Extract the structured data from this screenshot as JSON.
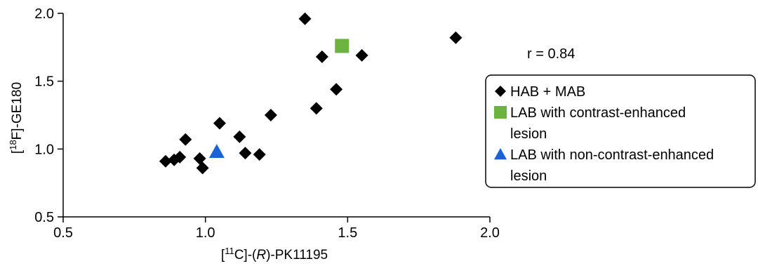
{
  "chart_data": {
    "type": "scatter",
    "xlabel": {
      "prefix": "[",
      "sup": "11",
      "mid": "C]-(",
      "italic": "R",
      "suffix": ")-PK11195"
    },
    "ylabel": {
      "prefix": "[",
      "sup": "18",
      "suffix": "F]-GE180"
    },
    "xlim": [
      0.5,
      2.0
    ],
    "ylim": [
      0.5,
      2.0
    ],
    "xticks": [
      0.5,
      1.0,
      1.5,
      2.0
    ],
    "xtick_labels": [
      "0.5",
      "1.0",
      "1.5",
      "2.0"
    ],
    "yticks": [
      0.5,
      1.0,
      1.5,
      2.0
    ],
    "ytick_labels": [
      "0.5",
      "1.0",
      "1.5",
      "2.0"
    ],
    "grid": false,
    "annotation": "r = 0.84",
    "legend_position": "right",
    "series": [
      {
        "name": "HAB + MAB",
        "marker": "diamond",
        "color": "#000000",
        "points": [
          {
            "x": 0.86,
            "y": 0.91
          },
          {
            "x": 0.89,
            "y": 0.92
          },
          {
            "x": 0.91,
            "y": 0.94
          },
          {
            "x": 0.93,
            "y": 1.07
          },
          {
            "x": 0.98,
            "y": 0.93
          },
          {
            "x": 0.99,
            "y": 0.86
          },
          {
            "x": 1.05,
            "y": 1.19
          },
          {
            "x": 1.12,
            "y": 1.09
          },
          {
            "x": 1.14,
            "y": 0.97
          },
          {
            "x": 1.19,
            "y": 0.96
          },
          {
            "x": 1.23,
            "y": 1.25
          },
          {
            "x": 1.35,
            "y": 1.96
          },
          {
            "x": 1.39,
            "y": 1.3
          },
          {
            "x": 1.41,
            "y": 1.68
          },
          {
            "x": 1.46,
            "y": 1.44
          },
          {
            "x": 1.55,
            "y": 1.69
          },
          {
            "x": 1.88,
            "y": 1.82
          }
        ]
      },
      {
        "name": "LAB with contrast-enhanced lesion",
        "legend_lines": [
          "LAB with contrast-enhanced",
          "lesion"
        ],
        "marker": "square",
        "color": "#6cb33f",
        "points": [
          {
            "x": 1.48,
            "y": 1.76
          }
        ]
      },
      {
        "name": "LAB with non-contrast-enhanced lesion",
        "legend_lines": [
          "LAB with non-contrast-enhanced",
          "lesion"
        ],
        "marker": "triangle",
        "color": "#1a63d6",
        "points": [
          {
            "x": 1.04,
            "y": 0.98
          }
        ]
      }
    ]
  }
}
